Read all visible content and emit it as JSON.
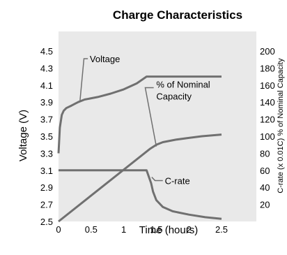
{
  "chart_data": {
    "type": "line",
    "title": "Charge Characteristics",
    "xlabel": "Time (hours)",
    "ylabel": "Voltage (V)",
    "y2label": "C-rate (x 0.01C) % of Nominal Capacity",
    "xlim": [
      0,
      2.5
    ],
    "ylim": [
      2.5,
      4.5
    ],
    "y2lim": [
      0,
      200
    ],
    "xticks": [
      "0",
      "0.5",
      "1",
      "1.5",
      "2",
      "2.5"
    ],
    "yticks": [
      "2.5",
      "2.7",
      "2.9",
      "3.1",
      "3.3",
      "3.5",
      "3.7",
      "3.9",
      "4.1",
      "4.3",
      "4.5"
    ],
    "y2ticks": [
      "20",
      "40",
      "60",
      "80",
      "100",
      "120",
      "140",
      "160",
      "180",
      "200"
    ],
    "grid": false,
    "background": "#e9e9e9",
    "line_color": "#707070",
    "series": [
      {
        "name": "Voltage",
        "axis": "left",
        "x": [
          0,
          0.02,
          0.05,
          0.08,
          0.12,
          0.2,
          0.3,
          0.4,
          0.6,
          0.8,
          1.0,
          1.2,
          1.35,
          1.4,
          2.5
        ],
        "y": [
          3.3,
          3.6,
          3.75,
          3.8,
          3.83,
          3.86,
          3.9,
          3.93,
          3.96,
          4.0,
          4.05,
          4.12,
          4.2,
          4.2,
          4.2
        ]
      },
      {
        "name": "% of Nominal Capacity",
        "axis": "right",
        "x": [
          0,
          1.4,
          1.5,
          1.6,
          1.8,
          2.0,
          2.2,
          2.5
        ],
        "y": [
          0,
          85,
          90,
          93,
          96,
          98,
          100,
          102
        ]
      },
      {
        "name": "C-rate",
        "axis": "right",
        "x": [
          0,
          1.35,
          1.42,
          1.45,
          1.5,
          1.6,
          1.75,
          2.0,
          2.25,
          2.5
        ],
        "y": [
          60,
          60,
          45,
          35,
          25,
          17,
          12,
          8,
          5,
          3
        ]
      }
    ],
    "annotations": [
      {
        "text": "Voltage",
        "series": "Voltage"
      },
      {
        "text": "% of Nominal",
        "series": "% of Nominal Capacity"
      },
      {
        "text": "Capacity",
        "series": "% of Nominal Capacity"
      },
      {
        "text": "C-rate",
        "series": "C-rate"
      }
    ]
  }
}
